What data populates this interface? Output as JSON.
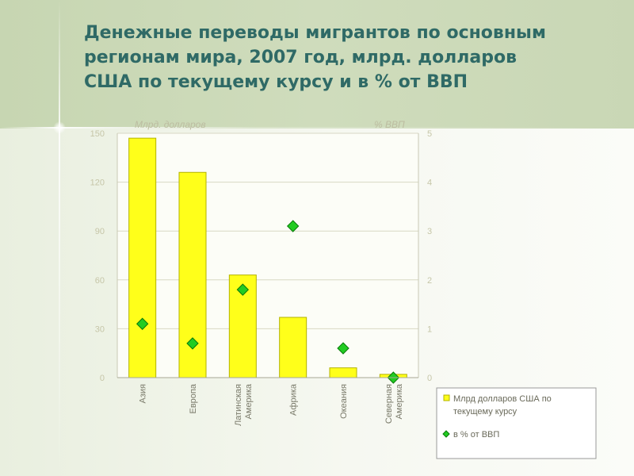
{
  "slide": {
    "title_lines": [
      "Денежные переводы мигрантов по основным",
      "регионам мира, 2007 год, млрд. долларов",
      "США по текущему курсу и в % от ВВП"
    ]
  },
  "colors": {
    "header_band": "#c9d7b5",
    "title": "#2f6a66",
    "bar_fill": "#ffff1a",
    "bar_stroke": "#b3b300",
    "marker_fill": "#22cc22",
    "marker_stroke": "#0a7a0a",
    "grid": "#d8d8c4"
  },
  "chart_data": {
    "type": "bar",
    "categories": [
      [
        "Азия"
      ],
      [
        "Европа"
      ],
      [
        "Латинская",
        "Америка"
      ],
      [
        "Африка"
      ],
      [
        "Океания"
      ],
      [
        "Северная",
        "Америка"
      ]
    ],
    "series": [
      {
        "name": "Млрд долларов США по текущему курсу",
        "type": "bar",
        "axis": "left",
        "values": [
          147,
          126,
          63,
          37,
          6,
          2
        ]
      },
      {
        "name": "в % от ВВП",
        "type": "scatter",
        "axis": "right",
        "marker": "diamond",
        "values": [
          1.1,
          0.7,
          1.8,
          3.1,
          0.6,
          0.0
        ]
      }
    ],
    "ylabel_left": "Млрд. долларов",
    "ylabel_right": "% ВВП",
    "ylim_left": [
      0,
      150
    ],
    "ylim_right": [
      0,
      5
    ],
    "yticks_left": [
      "0",
      "30",
      "60",
      "90",
      "120",
      "150"
    ],
    "yticks_right": [
      "0",
      "1",
      "2",
      "3",
      "4",
      "5"
    ],
    "grid": true,
    "legend": {
      "placement": "bottom-right",
      "entries": [
        [
          "Млрд долларов США по",
          "текущему курсу"
        ],
        [
          "в % от ВВП"
        ]
      ]
    }
  }
}
